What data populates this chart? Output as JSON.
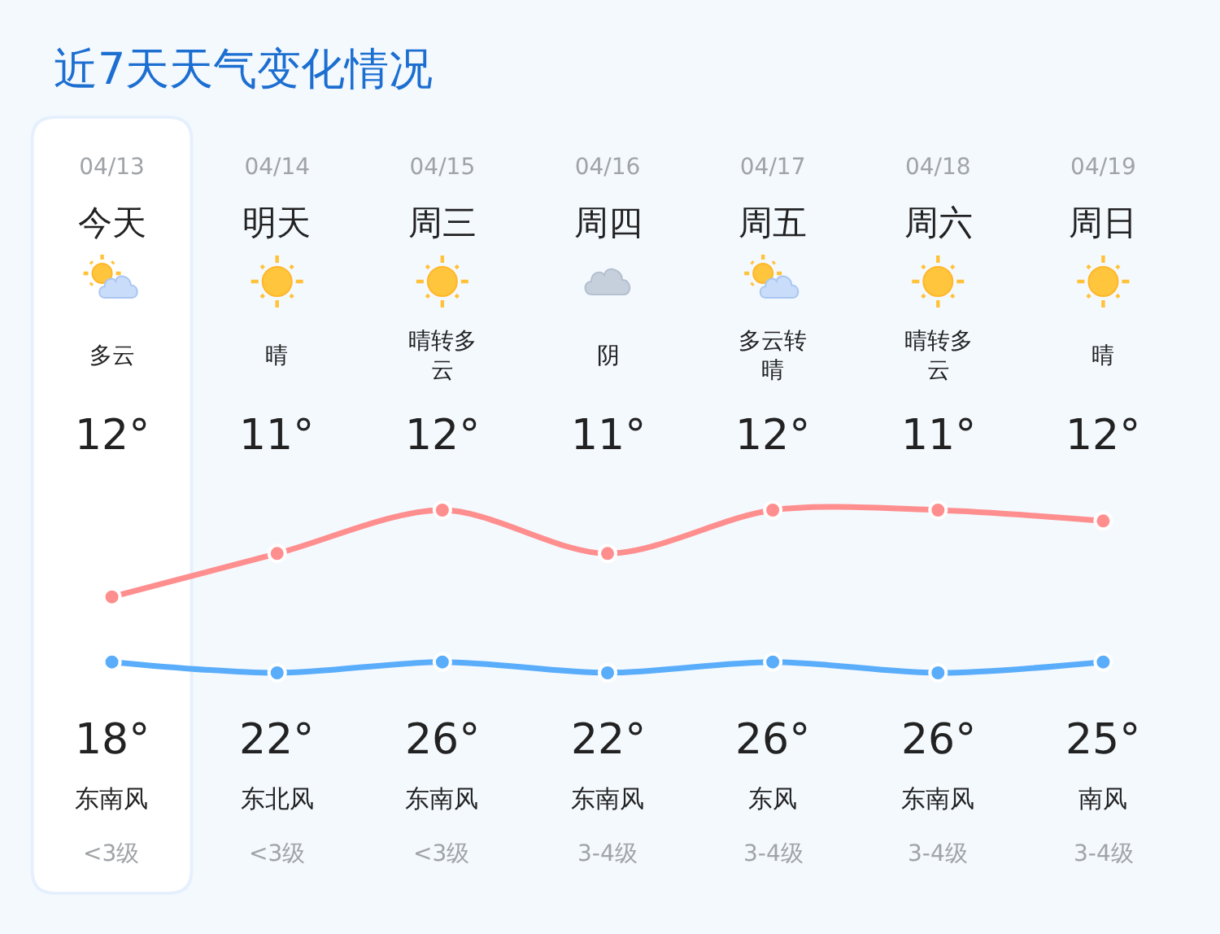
{
  "chart_data": {
    "type": "line",
    "title": "近7天天气变化情况",
    "categories": [
      "04/13",
      "04/14",
      "04/15",
      "04/16",
      "04/17",
      "04/18",
      "04/19"
    ],
    "series": [
      {
        "color": "#5aadfb",
        "values": [
          12,
          11,
          12,
          11,
          12,
          11,
          12
        ],
        "value_labels": [
          "12°",
          "11°",
          "12°",
          "11°",
          "12°",
          "11°",
          "12°"
        ]
      },
      {
        "color": "#ff8e8e",
        "values": [
          18,
          22,
          26,
          22,
          26,
          26,
          25
        ],
        "value_labels": [
          "18°",
          "22°",
          "26°",
          "22°",
          "26°",
          "26°",
          "25°"
        ]
      }
    ],
    "tick_labels": "x",
    "marker": "circle",
    "line_style": "solid",
    "bands": [
      {
        "axis": "x",
        "from": "04/13",
        "to": "04/13",
        "color": "#ffffff"
      }
    ],
    "annotations": [
      "今天",
      "明天",
      "周三",
      "周四",
      "周五",
      "周六",
      "周日",
      "多云",
      "晴",
      "晴转多云",
      "阴",
      "多云转晴",
      "晴转多云",
      "晴",
      "东南风",
      "东北风",
      "东南风",
      "东南风",
      "东风",
      "东南风",
      "南风",
      "<3级",
      "<3级",
      "<3级",
      "3-4级",
      "3-4级",
      "3-4级",
      "3-4级"
    ]
  }
}
